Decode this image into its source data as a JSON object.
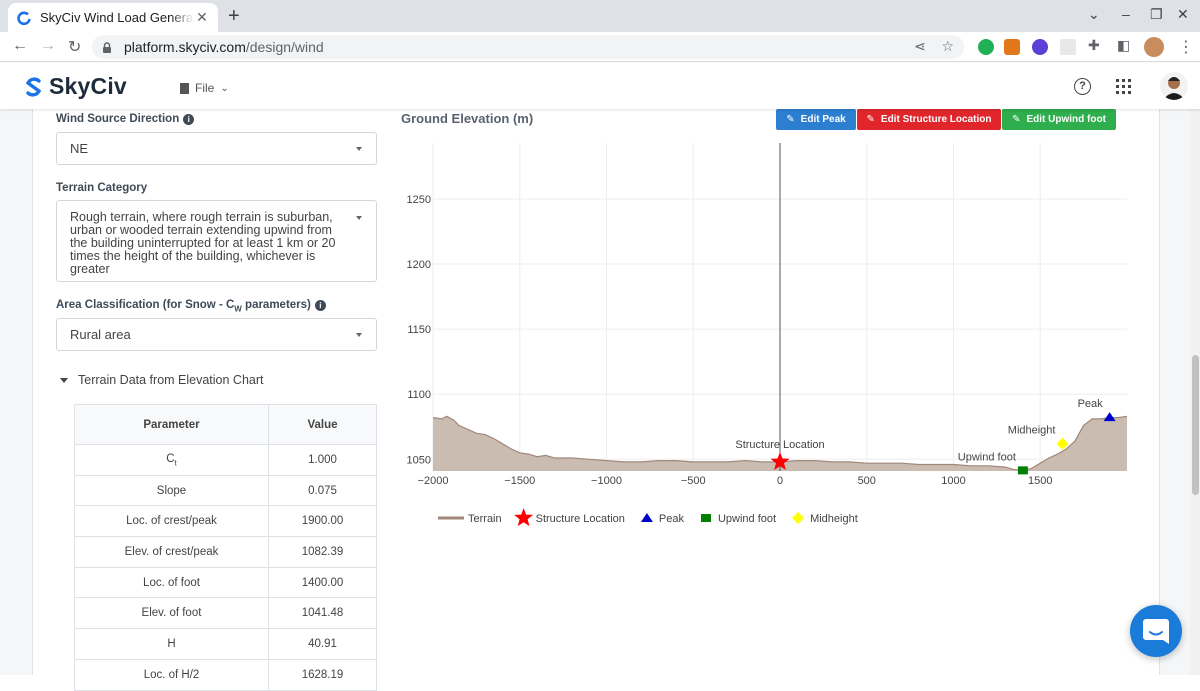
{
  "browser": {
    "tab_title": "SkyCiv Wind Load Generator",
    "url_host": "platform.skyciv.com",
    "url_path": "/design/wind"
  },
  "app": {
    "brand": "SkyCiv",
    "file_menu": "File"
  },
  "form": {
    "wind_source_direction": {
      "label": "Wind Source Direction",
      "value": "NE"
    },
    "terrain_category": {
      "label": "Terrain Category",
      "value": "Rough terrain, where rough terrain is suburban, urban or wooded terrain extending upwind from the building uninterrupted for at least 1 km or 20 times the height of the building, whichever is greater"
    },
    "area_classification": {
      "label_pre": "Area Classification (for Snow - C",
      "label_sub": "W",
      "label_post": " parameters)",
      "value": "Rural area"
    },
    "terrain_section": {
      "label": "Terrain Data from Elevation Chart"
    }
  },
  "table": {
    "headers": [
      "Parameter",
      "Value"
    ],
    "rows": [
      {
        "param": "Ct",
        "sub": "t",
        "value": "1.000"
      },
      {
        "param": "Slope",
        "value": "0.075"
      },
      {
        "param": "Loc. of crest/peak",
        "value": "1900.00"
      },
      {
        "param": "Elev. of crest/peak",
        "value": "1082.39"
      },
      {
        "param": "Loc. of foot",
        "value": "1400.00"
      },
      {
        "param": "Elev. of foot",
        "value": "1041.48"
      },
      {
        "param": "H",
        "value": "40.91"
      },
      {
        "param": "Loc. of H/2",
        "value": "1628.19"
      }
    ]
  },
  "chart_buttons": {
    "edit_peak": "Edit Peak",
    "edit_structure": "Edit Structure Location",
    "edit_upwind": "Edit Upwind foot"
  },
  "colors": {
    "terrain_fill": "#cbbcb2",
    "terrain_line": "#a0877a",
    "structure": "#ff0000",
    "peak": "#0000cc",
    "upwind": "#008000",
    "midheight": "#ffff00",
    "btn_blue": "#2c7ed1",
    "btn_red": "#e0262b",
    "btn_green": "#2eae4c"
  },
  "chart_data": {
    "type": "area",
    "title": "Ground Elevation (m)",
    "xlim": [
      -2000,
      2000
    ],
    "ylim": [
      1041,
      1293
    ],
    "x_ticks": [
      -2000,
      -1500,
      -1000,
      -500,
      0,
      500,
      1000,
      1500
    ],
    "x_tick_labels": [
      "−2000",
      "−1500",
      "−1000",
      "−500",
      "0",
      "500",
      "1000",
      "1500"
    ],
    "y_ticks": [
      1050,
      1100,
      1150,
      1200,
      1250
    ],
    "grid": true,
    "legend_position": "bottom",
    "terrain": {
      "name": "Terrain",
      "x": [
        -2000,
        -1950,
        -1920,
        -1880,
        -1850,
        -1800,
        -1750,
        -1700,
        -1650,
        -1600,
        -1550,
        -1500,
        -1450,
        -1400,
        -1350,
        -1300,
        -1200,
        -1100,
        -1000,
        -900,
        -800,
        -700,
        -600,
        -500,
        -400,
        -300,
        -200,
        -100,
        0,
        100,
        200,
        300,
        400,
        500,
        600,
        700,
        800,
        900,
        1000,
        1100,
        1200,
        1300,
        1350,
        1400,
        1450,
        1500,
        1550,
        1600,
        1650,
        1700,
        1750,
        1800,
        1850,
        1900,
        1950,
        2000
      ],
      "y": [
        1082,
        1081,
        1083,
        1080,
        1076,
        1073,
        1070,
        1069,
        1066,
        1062,
        1058,
        1055,
        1054,
        1052,
        1053,
        1051,
        1051,
        1050,
        1049,
        1048,
        1048,
        1049,
        1049,
        1048,
        1048,
        1048,
        1049,
        1048,
        1048,
        1049,
        1049,
        1048,
        1048,
        1047,
        1047,
        1047,
        1046,
        1046,
        1046,
        1045,
        1045,
        1044,
        1042,
        1041.5,
        1043,
        1047,
        1051,
        1054,
        1058,
        1064,
        1076,
        1081,
        1081,
        1082,
        1082,
        1083
      ]
    },
    "markers": [
      {
        "name": "Structure Location",
        "x": 0,
        "y": 1048,
        "symbol": "star",
        "label": "Structure Location",
        "label_pos": "above"
      },
      {
        "name": "Peak",
        "x": 1900,
        "y": 1082.39,
        "symbol": "triangle-up",
        "label": "Peak",
        "label_pos": "above-left"
      },
      {
        "name": "Upwind foot",
        "x": 1400,
        "y": 1041.48,
        "symbol": "square",
        "label": "Upwind foot",
        "label_pos": "above-left"
      },
      {
        "name": "Midheight",
        "x": 1628.19,
        "y": 1061.94,
        "symbol": "diamond",
        "label": "Midheight",
        "label_pos": "above-left"
      }
    ],
    "vertical_line_x": 0,
    "legend": [
      "Terrain",
      "Structure Location",
      "Peak",
      "Upwind foot",
      "Midheight"
    ]
  }
}
